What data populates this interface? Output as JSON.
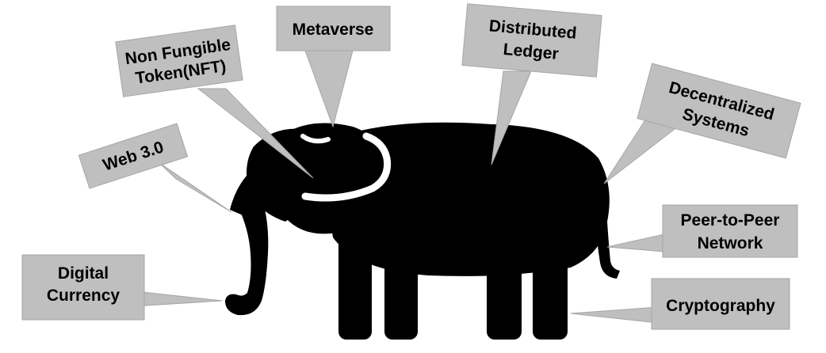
{
  "diagram": {
    "subject_icon": "elephant-silhouette",
    "box_color": "#bfbfbf",
    "text_color": "#000000",
    "callouts": [
      {
        "id": "digital-currency",
        "lines": [
          "Digital",
          "Currency"
        ]
      },
      {
        "id": "web3",
        "lines": [
          "Web 3.0"
        ]
      },
      {
        "id": "nft",
        "lines": [
          "Non Fungible",
          "Token(NFT)"
        ]
      },
      {
        "id": "metaverse",
        "lines": [
          "Metaverse"
        ]
      },
      {
        "id": "distributed-ledger",
        "lines": [
          "Distributed",
          "Ledger"
        ]
      },
      {
        "id": "decentralized-systems",
        "lines": [
          "Decentralized",
          "Systems"
        ]
      },
      {
        "id": "p2p-network",
        "lines": [
          "Peer-to-Peer",
          "Network"
        ]
      },
      {
        "id": "cryptography",
        "lines": [
          "Cryptography"
        ]
      }
    ]
  }
}
